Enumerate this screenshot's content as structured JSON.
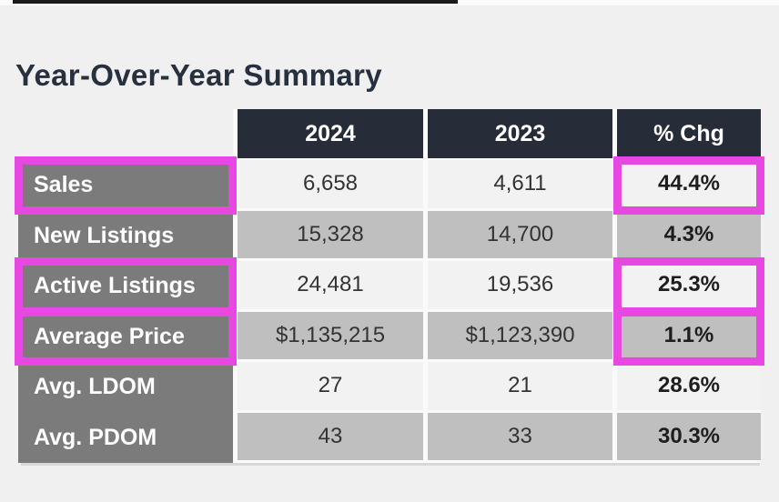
{
  "page": {
    "title": "Year-Over-Year Summary"
  },
  "table": {
    "columns": [
      "2024",
      "2023",
      "% Chg"
    ],
    "rows": [
      {
        "label": "Sales",
        "y2024": "6,658",
        "y2023": "4,611",
        "chg": "44.4%",
        "shade": "light",
        "label_hl": true,
        "chg_hl": true
      },
      {
        "label": "New Listings",
        "y2024": "15,328",
        "y2023": "14,700",
        "chg": "4.3%",
        "shade": "gray",
        "label_hl": false,
        "chg_hl": false
      },
      {
        "label": "Active Listings",
        "y2024": "24,481",
        "y2023": "19,536",
        "chg": "25.3%",
        "shade": "light",
        "label_hl": true,
        "chg_hl": true
      },
      {
        "label": "Average Price",
        "y2024": "$1,135,215",
        "y2023": "$1,123,390",
        "chg": "1.1%",
        "shade": "gray",
        "label_hl": true,
        "chg_hl": true
      },
      {
        "label": "Avg. LDOM",
        "y2024": "27",
        "y2023": "21",
        "chg": "28.6%",
        "shade": "light",
        "label_hl": false,
        "chg_hl": false
      },
      {
        "label": "Avg. PDOM",
        "y2024": "43",
        "y2023": "33",
        "chg": "30.3%",
        "shade": "gray",
        "label_hl": false,
        "chg_hl": false
      }
    ]
  },
  "chart_data": {
    "type": "table",
    "title": "Year-Over-Year Summary",
    "columns": [
      "",
      "2024",
      "2023",
      "% Chg"
    ],
    "rows": [
      [
        "Sales",
        6658,
        4611,
        "44.4%"
      ],
      [
        "New Listings",
        15328,
        14700,
        "4.3%"
      ],
      [
        "Active Listings",
        24481,
        19536,
        "25.3%"
      ],
      [
        "Average Price",
        "$1,135,215",
        "$1,123,390",
        "1.1%"
      ],
      [
        "Avg. LDOM",
        27,
        21,
        "28.6%"
      ],
      [
        "Avg. PDOM",
        43,
        33,
        "30.3%"
      ]
    ],
    "highlighted_cells": [
      "Sales label",
      "Sales % Chg",
      "Active Listings label",
      "Active Listings % Chg",
      "Average Price label",
      "Average Price % Chg"
    ],
    "highlight_color": "#e748e1"
  },
  "colors": {
    "accent": "#e748e1",
    "header-bg": "#272c39",
    "label-bg": "#7b7b7b",
    "row-light": "#f2f2f2",
    "row-gray": "#bfbfbf",
    "page-bg": "#f0f0f0",
    "title-text": "#27303f"
  }
}
